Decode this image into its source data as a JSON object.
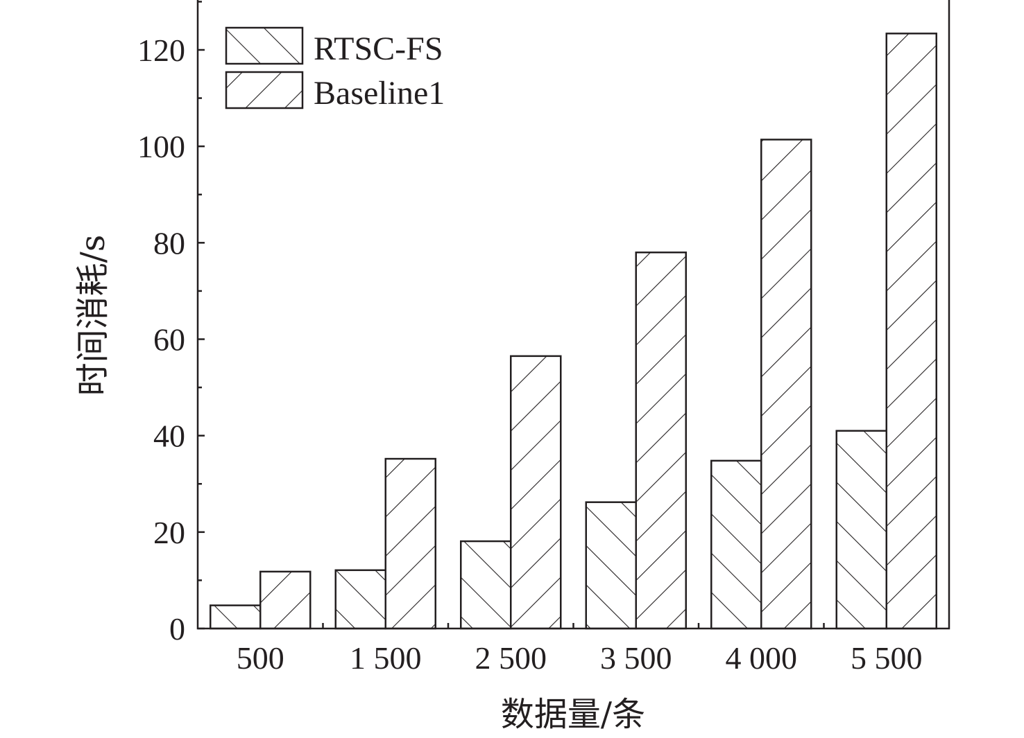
{
  "chart_data": {
    "type": "bar",
    "categories": [
      "500",
      "1 500",
      "2 500",
      "3 500",
      "4 000",
      "5 500"
    ],
    "series": [
      {
        "name": "RTSC-FS",
        "values": [
          4.8,
          12.1,
          18.1,
          26.2,
          34.8,
          41.0
        ],
        "pattern": "hatch-forward"
      },
      {
        "name": "Baseline1",
        "values": [
          11.8,
          35.2,
          56.5,
          78.0,
          101.4,
          123.4
        ],
        "pattern": "hatch-backward"
      }
    ],
    "xlabel": "数据量/条",
    "ylabel": "时间消耗/s",
    "ylim": [
      0,
      130
    ],
    "yticks": [
      "0",
      "20",
      "40",
      "60",
      "80",
      "100",
      "120"
    ],
    "legend_position": "top-left",
    "colors": {
      "stroke": "#231f20",
      "fill": "#ffffff"
    }
  }
}
